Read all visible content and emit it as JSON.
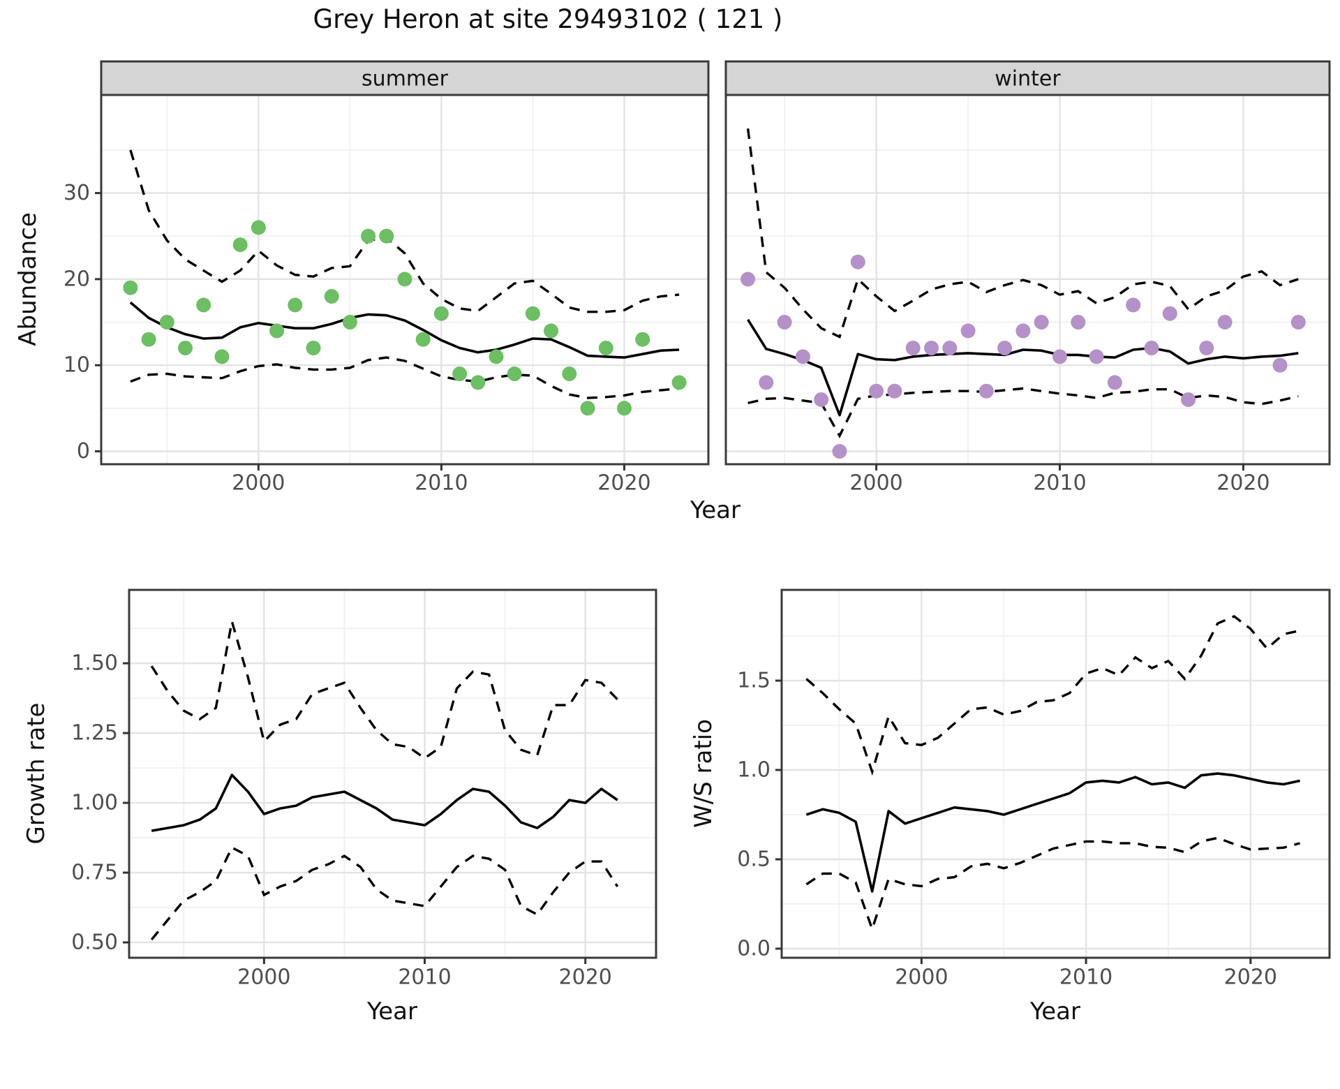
{
  "title": "Grey Heron at site 29493102 ( 121 )",
  "xlabel_top": "Year",
  "colors": {
    "summer_point": "#6cbf63",
    "winter_point": "#b491c8",
    "line": "#000000",
    "strip_fill": "#d5d5d5",
    "strip_text": "#141414",
    "panel_border": "#3a3a3a",
    "grid_major": "#e3e3e3",
    "grid_minor": "#f0f0f0",
    "tick_text": "#4d4d4d",
    "background": "#ffffff"
  },
  "chart_data": [
    {
      "id": "abundance_summer",
      "type": "scatter",
      "facet_label": "summer",
      "xlabel": "Year",
      "ylabel": "Abundance",
      "legend_position": "none",
      "grid": true,
      "x_range": [
        1991.4,
        2024.6
      ],
      "y_range": [
        -1.5,
        41.4
      ],
      "x_major_ticks": [
        2000,
        2010,
        2020
      ],
      "x_tick_labels": [
        "2000",
        "2010",
        "2020"
      ],
      "x_minor_ticks": [
        1995,
        2005,
        2015
      ],
      "y_major_ticks": [
        0,
        10,
        20,
        30
      ],
      "y_tick_labels": [
        "0",
        "10",
        "20",
        "30"
      ],
      "y_minor_ticks": [
        5,
        15,
        25,
        35
      ],
      "point_color": "#6cbf63",
      "points": {
        "x": [
          1993,
          1994,
          1995,
          1996,
          1997,
          1998,
          1999,
          2000,
          2001,
          2002,
          2003,
          2004,
          2005,
          2006,
          2007,
          2008,
          2009,
          2010,
          2011,
          2012,
          2013,
          2014,
          2015,
          2016,
          2017,
          2018,
          2019,
          2020,
          2021,
          2023
        ],
        "y": [
          19,
          13,
          15,
          12,
          17,
          11,
          24,
          26,
          14,
          17,
          12,
          18,
          15,
          25,
          25,
          20,
          13,
          16,
          9,
          8,
          11,
          9,
          16,
          14,
          9,
          5,
          12,
          5,
          13,
          8
        ]
      },
      "trend": {
        "x": [
          1993,
          1994,
          1995,
          1996,
          1997,
          1998,
          1999,
          2000,
          2001,
          2002,
          2003,
          2004,
          2005,
          2006,
          2007,
          2008,
          2009,
          2010,
          2011,
          2012,
          2013,
          2014,
          2015,
          2016,
          2017,
          2018,
          2019,
          2020,
          2021,
          2022,
          2023
        ],
        "y": [
          17.3,
          15.5,
          14.4,
          13.6,
          13.1,
          13.2,
          14.4,
          14.9,
          14.6,
          14.3,
          14.3,
          14.8,
          15.5,
          15.9,
          15.8,
          15.2,
          14.1,
          12.9,
          12.0,
          11.5,
          11.8,
          12.4,
          13.1,
          13.0,
          12.1,
          11.1,
          11.0,
          10.9,
          11.3,
          11.7,
          11.8
        ]
      },
      "upper_ci": {
        "x": [
          1993,
          1994,
          1995,
          1996,
          1997,
          1998,
          1999,
          2000,
          2001,
          2002,
          2003,
          2004,
          2005,
          2006,
          2007,
          2008,
          2009,
          2010,
          2011,
          2012,
          2013,
          2014,
          2015,
          2016,
          2017,
          2018,
          2019,
          2020,
          2021,
          2022,
          2023
        ],
        "y": [
          35.0,
          28.0,
          24.5,
          22.3,
          21.0,
          19.7,
          21.0,
          23.3,
          21.6,
          20.5,
          20.3,
          21.3,
          21.5,
          24.5,
          24.8,
          23.0,
          19.5,
          17.7,
          16.6,
          16.3,
          17.9,
          19.5,
          19.8,
          18.3,
          16.7,
          16.2,
          16.2,
          16.4,
          17.5,
          18.0,
          18.2
        ]
      },
      "lower_ci": {
        "x": [
          1993,
          1994,
          1995,
          1996,
          1997,
          1998,
          1999,
          2000,
          2001,
          2002,
          2003,
          2004,
          2005,
          2006,
          2007,
          2008,
          2009,
          2010,
          2011,
          2012,
          2013,
          2014,
          2015,
          2016,
          2017,
          2018,
          2019,
          2020,
          2021,
          2022,
          2023
        ],
        "y": [
          8.1,
          8.9,
          9.0,
          8.7,
          8.6,
          8.5,
          9.3,
          9.9,
          10.1,
          9.7,
          9.5,
          9.5,
          9.7,
          10.6,
          10.9,
          10.5,
          9.6,
          8.7,
          8.3,
          8.1,
          8.6,
          8.9,
          8.8,
          7.6,
          6.6,
          6.2,
          6.3,
          6.5,
          6.9,
          7.1,
          7.3
        ]
      }
    },
    {
      "id": "abundance_winter",
      "type": "scatter",
      "facet_label": "winter",
      "xlabel": "Year",
      "ylabel": "Abundance",
      "legend_position": "none",
      "grid": true,
      "x_range": [
        1991.8,
        2024.7
      ],
      "y_range": [
        -1.5,
        41.4
      ],
      "x_major_ticks": [
        2000,
        2010,
        2020
      ],
      "x_tick_labels": [
        "2000",
        "2010",
        "2020"
      ],
      "x_minor_ticks": [
        1995,
        2005,
        2015
      ],
      "y_major_ticks": [
        0,
        10,
        20,
        30
      ],
      "y_tick_labels": [
        "0",
        "10",
        "20",
        "30"
      ],
      "y_minor_ticks": [
        5,
        15,
        25,
        35
      ],
      "point_color": "#b491c8",
      "points": {
        "x": [
          1993,
          1994,
          1995,
          1996,
          1997,
          1998,
          1999,
          2000,
          2001,
          2002,
          2003,
          2004,
          2005,
          2006,
          2007,
          2008,
          2009,
          2010,
          2011,
          2012,
          2013,
          2014,
          2015,
          2016,
          2017,
          2018,
          2019,
          2022,
          2023
        ],
        "y": [
          20,
          8,
          15,
          11,
          6,
          0,
          22,
          7,
          7,
          12,
          12,
          12,
          14,
          7,
          12,
          14,
          15,
          11,
          15,
          11,
          8,
          17,
          12,
          16,
          6,
          12,
          15,
          10,
          15
        ]
      },
      "trend": {
        "x": [
          1993,
          1994,
          1995,
          1996,
          1997,
          1998,
          1999,
          2000,
          2001,
          2002,
          2003,
          2004,
          2005,
          2006,
          2007,
          2008,
          2009,
          2010,
          2011,
          2012,
          2013,
          2014,
          2015,
          2016,
          2017,
          2018,
          2019,
          2020,
          2021,
          2022,
          2023
        ],
        "y": [
          15.3,
          11.9,
          11.3,
          10.6,
          9.7,
          4.2,
          11.3,
          10.7,
          10.6,
          11.0,
          11.2,
          11.3,
          11.4,
          11.3,
          11.2,
          11.8,
          11.7,
          11.2,
          11.2,
          11.0,
          10.9,
          11.8,
          12.0,
          11.6,
          10.2,
          10.7,
          11.0,
          10.8,
          11.0,
          11.1,
          11.4
        ]
      },
      "upper_ci": {
        "x": [
          1993,
          1994,
          1995,
          1996,
          1997,
          1998,
          1999,
          2000,
          2001,
          2002,
          2003,
          2004,
          2005,
          2006,
          2007,
          2008,
          2009,
          2010,
          2011,
          2012,
          2013,
          2014,
          2015,
          2016,
          2017,
          2018,
          2019,
          2020,
          2021,
          2022,
          2023
        ],
        "y": [
          37.5,
          20.8,
          19.0,
          16.5,
          14.3,
          13.3,
          20.0,
          18.0,
          16.3,
          17.5,
          18.8,
          19.4,
          19.7,
          18.5,
          19.3,
          19.9,
          19.3,
          18.2,
          18.6,
          17.2,
          17.9,
          19.4,
          19.7,
          19.2,
          16.5,
          18.0,
          18.7,
          20.3,
          20.9,
          19.3,
          20.0
        ]
      },
      "lower_ci": {
        "x": [
          1993,
          1994,
          1995,
          1996,
          1997,
          1998,
          1999,
          2000,
          2001,
          2002,
          2003,
          2004,
          2005,
          2006,
          2007,
          2008,
          2009,
          2010,
          2011,
          2012,
          2013,
          2014,
          2015,
          2016,
          2017,
          2018,
          2019,
          2020,
          2021,
          2022,
          2023
        ],
        "y": [
          5.6,
          6.1,
          6.2,
          5.9,
          5.6,
          1.8,
          6.1,
          6.5,
          6.6,
          6.8,
          6.9,
          7.0,
          7.0,
          6.9,
          7.1,
          7.3,
          7.0,
          6.7,
          6.5,
          6.2,
          6.8,
          6.9,
          7.2,
          7.2,
          6.2,
          6.5,
          6.3,
          5.7,
          5.5,
          5.9,
          6.4
        ]
      }
    },
    {
      "id": "growth_rate",
      "type": "line",
      "facet_label": null,
      "xlabel": "Year",
      "ylabel": "Growth rate",
      "legend_position": "none",
      "grid": true,
      "x_range": [
        1991.6,
        2024.4
      ],
      "y_range": [
        0.445,
        1.763
      ],
      "x_major_ticks": [
        2000,
        2010,
        2020
      ],
      "x_tick_labels": [
        "2000",
        "2010",
        "2020"
      ],
      "x_minor_ticks": [
        1995,
        2005,
        2015
      ],
      "y_major_ticks": [
        0.5,
        0.75,
        1.0,
        1.25,
        1.5
      ],
      "y_tick_labels": [
        "0.50",
        "0.75",
        "1.00",
        "1.25",
        "1.50"
      ],
      "y_minor_ticks": [
        0.625,
        0.875,
        1.125,
        1.375,
        1.625
      ],
      "point_color": null,
      "points": {
        "x": [],
        "y": []
      },
      "trend": {
        "x": [
          1993,
          1994,
          1995,
          1996,
          1997,
          1998,
          1999,
          2000,
          2001,
          2002,
          2003,
          2004,
          2005,
          2006,
          2007,
          2008,
          2009,
          2010,
          2011,
          2012,
          2013,
          2014,
          2015,
          2016,
          2017,
          2018,
          2019,
          2020,
          2021,
          2022
        ],
        "y": [
          0.9,
          0.91,
          0.92,
          0.94,
          0.98,
          1.1,
          1.04,
          0.96,
          0.98,
          0.99,
          1.02,
          1.03,
          1.04,
          1.01,
          0.98,
          0.94,
          0.93,
          0.92,
          0.96,
          1.01,
          1.05,
          1.04,
          0.99,
          0.93,
          0.91,
          0.95,
          1.01,
          1.0,
          1.05,
          1.01
        ]
      },
      "upper_ci": {
        "x": [
          1993,
          1994,
          1995,
          1996,
          1997,
          1998,
          1999,
          2000,
          2001,
          2002,
          2003,
          2004,
          2005,
          2006,
          2007,
          2008,
          2009,
          2010,
          2011,
          2012,
          2013,
          2014,
          2015,
          2016,
          2017,
          2018,
          2019,
          2020,
          2021,
          2022
        ],
        "y": [
          1.49,
          1.4,
          1.33,
          1.3,
          1.34,
          1.65,
          1.45,
          1.22,
          1.28,
          1.3,
          1.39,
          1.41,
          1.43,
          1.34,
          1.26,
          1.21,
          1.2,
          1.16,
          1.2,
          1.41,
          1.47,
          1.46,
          1.26,
          1.19,
          1.17,
          1.35,
          1.35,
          1.44,
          1.43,
          1.37
        ]
      },
      "lower_ci": {
        "x": [
          1993,
          1994,
          1995,
          1996,
          1997,
          1998,
          1999,
          2000,
          2001,
          2002,
          2003,
          2004,
          2005,
          2006,
          2007,
          2008,
          2009,
          2010,
          2011,
          2012,
          2013,
          2014,
          2015,
          2016,
          2017,
          2018,
          2019,
          2020,
          2021,
          2022
        ],
        "y": [
          0.51,
          0.58,
          0.65,
          0.68,
          0.72,
          0.84,
          0.81,
          0.67,
          0.7,
          0.72,
          0.76,
          0.78,
          0.81,
          0.77,
          0.69,
          0.65,
          0.64,
          0.63,
          0.7,
          0.77,
          0.81,
          0.8,
          0.76,
          0.63,
          0.6,
          0.68,
          0.75,
          0.79,
          0.79,
          0.7
        ]
      }
    },
    {
      "id": "ws_ratio",
      "type": "line",
      "facet_label": null,
      "xlabel": "Year",
      "ylabel": "W/S ratio",
      "legend_position": "none",
      "grid": true,
      "x_range": [
        1991.5,
        2024.8
      ],
      "y_range": [
        -0.051,
        2.008
      ],
      "x_major_ticks": [
        2000,
        2010,
        2020
      ],
      "x_tick_labels": [
        "2000",
        "2010",
        "2020"
      ],
      "x_minor_ticks": [
        1995,
        2005,
        2015
      ],
      "y_major_ticks": [
        0.0,
        0.5,
        1.0,
        1.5
      ],
      "y_tick_labels": [
        "0.0",
        "0.5",
        "1.0",
        "1.5"
      ],
      "y_minor_ticks": [
        0.25,
        0.75,
        1.25,
        1.75
      ],
      "point_color": null,
      "points": {
        "x": [],
        "y": []
      },
      "trend": {
        "x": [
          1993,
          1994,
          1995,
          1996,
          1997,
          1998,
          1999,
          2000,
          2001,
          2002,
          2003,
          2004,
          2005,
          2006,
          2007,
          2008,
          2009,
          2010,
          2011,
          2012,
          2013,
          2014,
          2015,
          2016,
          2017,
          2018,
          2019,
          2020,
          2021,
          2022,
          2023
        ],
        "y": [
          0.75,
          0.78,
          0.76,
          0.71,
          0.32,
          0.77,
          0.7,
          0.73,
          0.76,
          0.79,
          0.78,
          0.77,
          0.75,
          0.78,
          0.81,
          0.84,
          0.87,
          0.93,
          0.94,
          0.93,
          0.96,
          0.92,
          0.93,
          0.9,
          0.97,
          0.98,
          0.97,
          0.95,
          0.93,
          0.92,
          0.94
        ]
      },
      "upper_ci": {
        "x": [
          1993,
          1994,
          1995,
          1996,
          1997,
          1998,
          1999,
          2000,
          2001,
          2002,
          2003,
          2004,
          2005,
          2006,
          2007,
          2008,
          2009,
          2010,
          2011,
          2012,
          2013,
          2014,
          2015,
          2016,
          2017,
          2018,
          2019,
          2020,
          2021,
          2022,
          2023
        ],
        "y": [
          1.51,
          1.43,
          1.34,
          1.26,
          0.99,
          1.3,
          1.15,
          1.14,
          1.18,
          1.26,
          1.34,
          1.35,
          1.31,
          1.33,
          1.38,
          1.39,
          1.43,
          1.54,
          1.57,
          1.53,
          1.63,
          1.57,
          1.61,
          1.51,
          1.64,
          1.82,
          1.86,
          1.79,
          1.68,
          1.76,
          1.78
        ]
      },
      "lower_ci": {
        "x": [
          1993,
          1994,
          1995,
          1996,
          1997,
          1998,
          1999,
          2000,
          2001,
          2002,
          2003,
          2004,
          2005,
          2006,
          2007,
          2008,
          2009,
          2010,
          2011,
          2012,
          2013,
          2014,
          2015,
          2016,
          2017,
          2018,
          2019,
          2020,
          2021,
          2022,
          2023
        ],
        "y": [
          0.36,
          0.42,
          0.42,
          0.37,
          0.11,
          0.39,
          0.36,
          0.35,
          0.39,
          0.4,
          0.46,
          0.475,
          0.45,
          0.48,
          0.52,
          0.56,
          0.58,
          0.6,
          0.6,
          0.59,
          0.59,
          0.57,
          0.565,
          0.54,
          0.6,
          0.62,
          0.585,
          0.555,
          0.56,
          0.565,
          0.59
        ]
      }
    }
  ]
}
